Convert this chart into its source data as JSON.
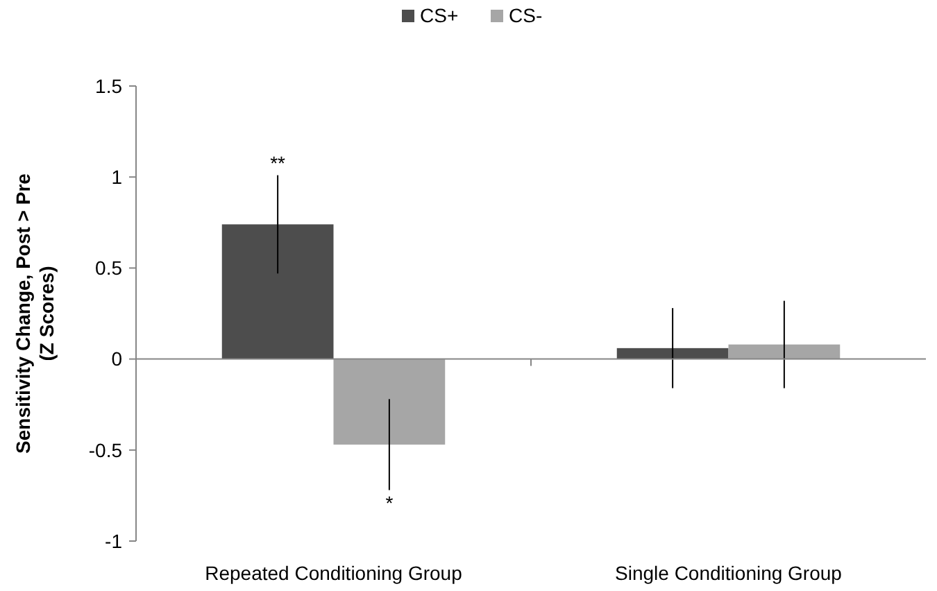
{
  "chart_data": {
    "type": "bar",
    "ylabel": "Sensitivity Change, Post > Pre\n(Z Scores)",
    "categories": [
      "Repeated Conditioning Group",
      "Single Conditioning Group"
    ],
    "series": [
      {
        "name": "CS+",
        "color": "#4d4d4d",
        "values": [
          0.74,
          0.06
        ],
        "errors": [
          0.27,
          0.22
        ]
      },
      {
        "name": "CS-",
        "color": "#a6a6a6",
        "values": [
          -0.47,
          0.08
        ],
        "errors": [
          0.25,
          0.24
        ]
      }
    ],
    "ylim": [
      -1,
      1.5
    ],
    "yticks": [
      -1,
      -0.5,
      0,
      0.5,
      1,
      1.5
    ],
    "legend": "top",
    "annotations": [
      "**",
      "*"
    ]
  }
}
